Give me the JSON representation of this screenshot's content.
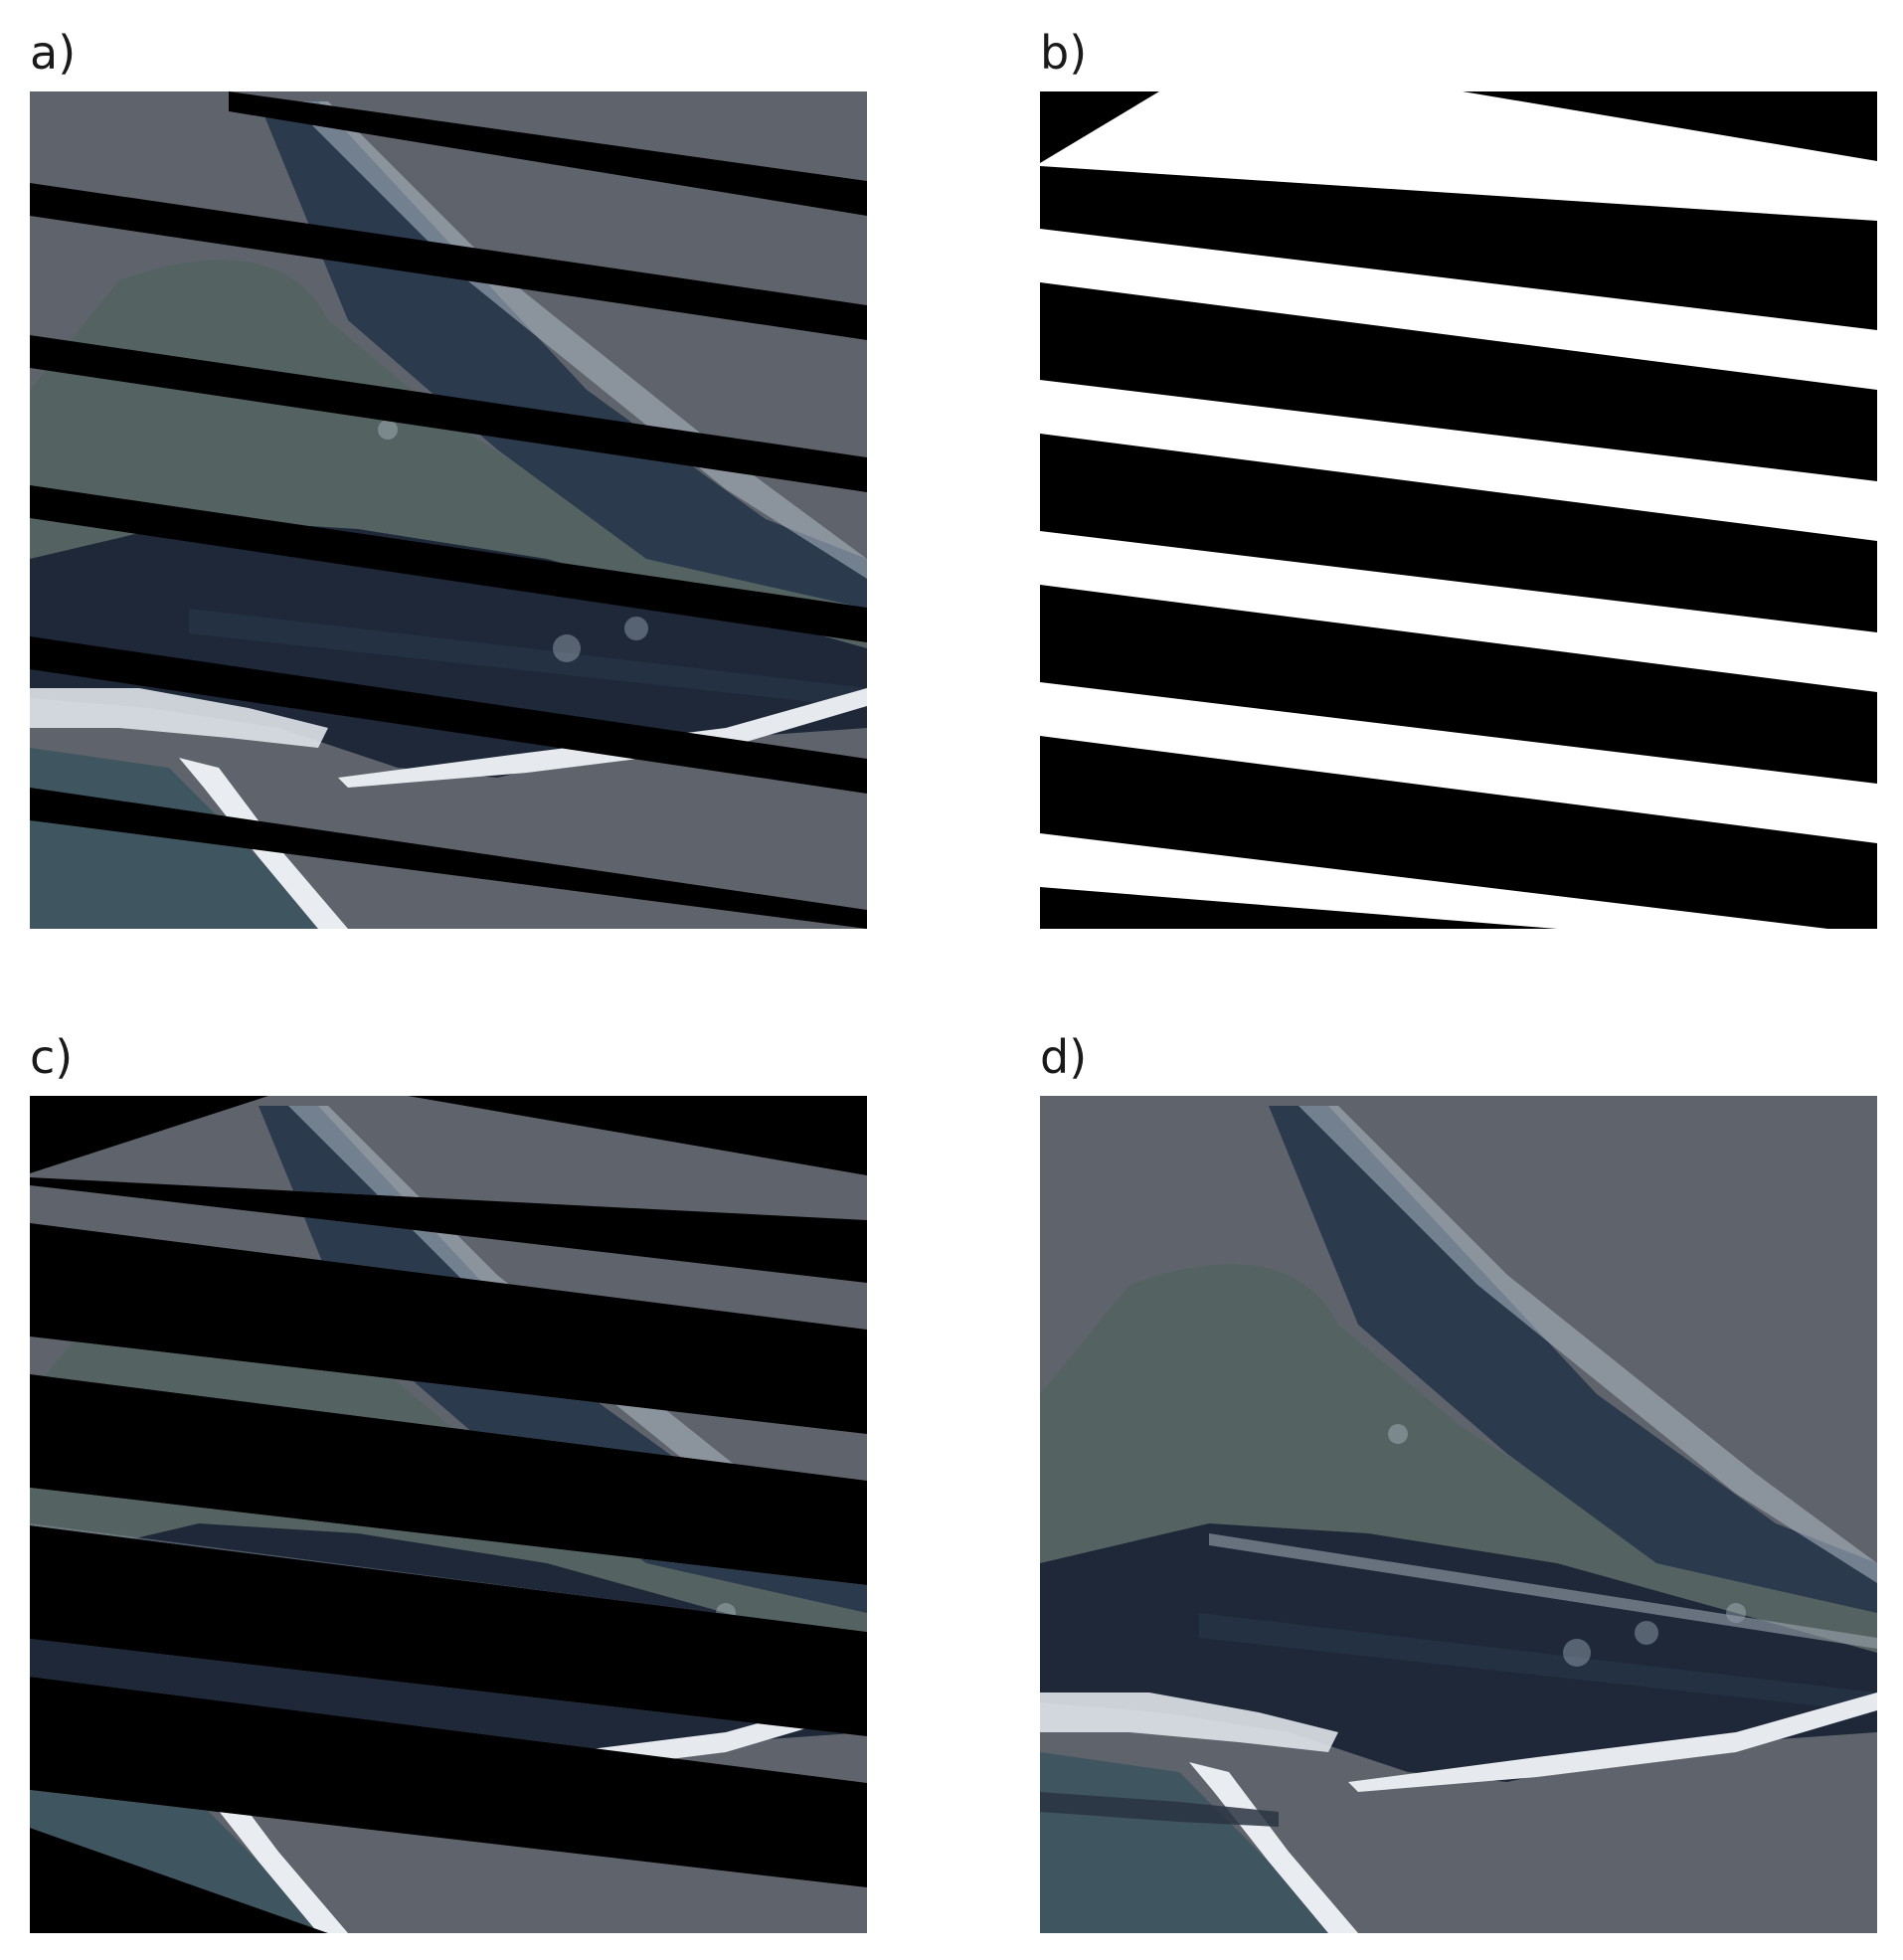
{
  "panels": [
    {
      "id": "a",
      "label": "a)"
    },
    {
      "id": "b",
      "label": "b)"
    },
    {
      "id": "c",
      "label": "c)"
    },
    {
      "id": "d",
      "label": "d)"
    }
  ],
  "colors": {
    "sea": "#5f646c",
    "lagoon": "#4e5e60",
    "forest": "#1f2a3a",
    "marsh": "#2e3c4c",
    "sand": "#d9dde3",
    "open_sea": "#3f5560",
    "mask_black": "#000000",
    "mask_white": "#ffffff"
  }
}
